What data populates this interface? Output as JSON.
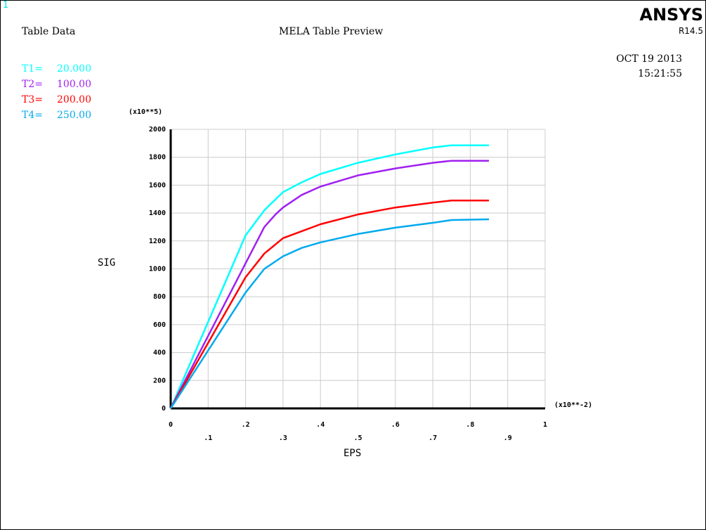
{
  "header": {
    "window_number": "1",
    "table_title": "Table Data",
    "preview_title": "MELA Table Preview",
    "brand": "ANSYS",
    "release": "R14.5",
    "date": "OCT 19 2013",
    "time": "15:21:55"
  },
  "legend": [
    {
      "label": "T1=",
      "value": "20.000",
      "color": "#00ffff"
    },
    {
      "label": "T2=",
      "value": "100.00",
      "color": "#a020f0"
    },
    {
      "label": "T3=",
      "value": "200.00",
      "color": "#ff0000"
    },
    {
      "label": "T4=",
      "value": "250.00",
      "color": "#00aaee"
    }
  ],
  "chart_data": {
    "type": "line",
    "xlabel": "EPS",
    "ylabel": "SIG",
    "x_multiplier": "(x10**-2)",
    "y_multiplier": "(x10**5)",
    "xlim": [
      0,
      1
    ],
    "ylim": [
      0,
      2000
    ],
    "x_ticks": [
      0,
      0.1,
      0.2,
      0.3,
      0.4,
      0.5,
      0.6,
      0.7,
      0.8,
      0.9,
      1
    ],
    "x_tick_labels": [
      "0",
      ".1",
      ".2",
      ".3",
      ".4",
      ".5",
      ".6",
      ".7",
      ".8",
      ".9",
      "1"
    ],
    "y_ticks": [
      0,
      200,
      400,
      600,
      800,
      1000,
      1200,
      1400,
      1600,
      1800,
      2000
    ],
    "y_tick_labels": [
      "0",
      "200",
      "400",
      "600",
      "800",
      "1000",
      "1200",
      "1400",
      "1600",
      "1800",
      "2000"
    ],
    "grid": true,
    "series": [
      {
        "name": "T1=",
        "color": "#00ffff",
        "x": [
          0,
          0.1,
          0.2,
          0.25,
          0.3,
          0.35,
          0.4,
          0.5,
          0.6,
          0.7,
          0.75,
          0.85
        ],
        "y": [
          0,
          620,
          1240,
          1420,
          1550,
          1620,
          1680,
          1760,
          1820,
          1870,
          1885,
          1885
        ]
      },
      {
        "name": "T2=",
        "color": "#a020f0",
        "x": [
          0,
          0.1,
          0.2,
          0.25,
          0.28,
          0.3,
          0.35,
          0.4,
          0.5,
          0.6,
          0.7,
          0.75,
          0.85
        ],
        "y": [
          0,
          520,
          1040,
          1300,
          1390,
          1440,
          1530,
          1590,
          1670,
          1720,
          1760,
          1775,
          1775
        ]
      },
      {
        "name": "T3=",
        "color": "#ff0000",
        "x": [
          0,
          0.1,
          0.2,
          0.25,
          0.3,
          0.35,
          0.4,
          0.5,
          0.6,
          0.7,
          0.75,
          0.85
        ],
        "y": [
          0,
          470,
          940,
          1110,
          1220,
          1270,
          1320,
          1390,
          1440,
          1475,
          1490,
          1490
        ]
      },
      {
        "name": "T4=",
        "color": "#00aaee",
        "x": [
          0,
          0.1,
          0.2,
          0.25,
          0.3,
          0.35,
          0.4,
          0.5,
          0.6,
          0.7,
          0.75,
          0.85
        ],
        "y": [
          0,
          415,
          830,
          1000,
          1090,
          1150,
          1190,
          1250,
          1295,
          1330,
          1350,
          1355
        ]
      }
    ]
  }
}
